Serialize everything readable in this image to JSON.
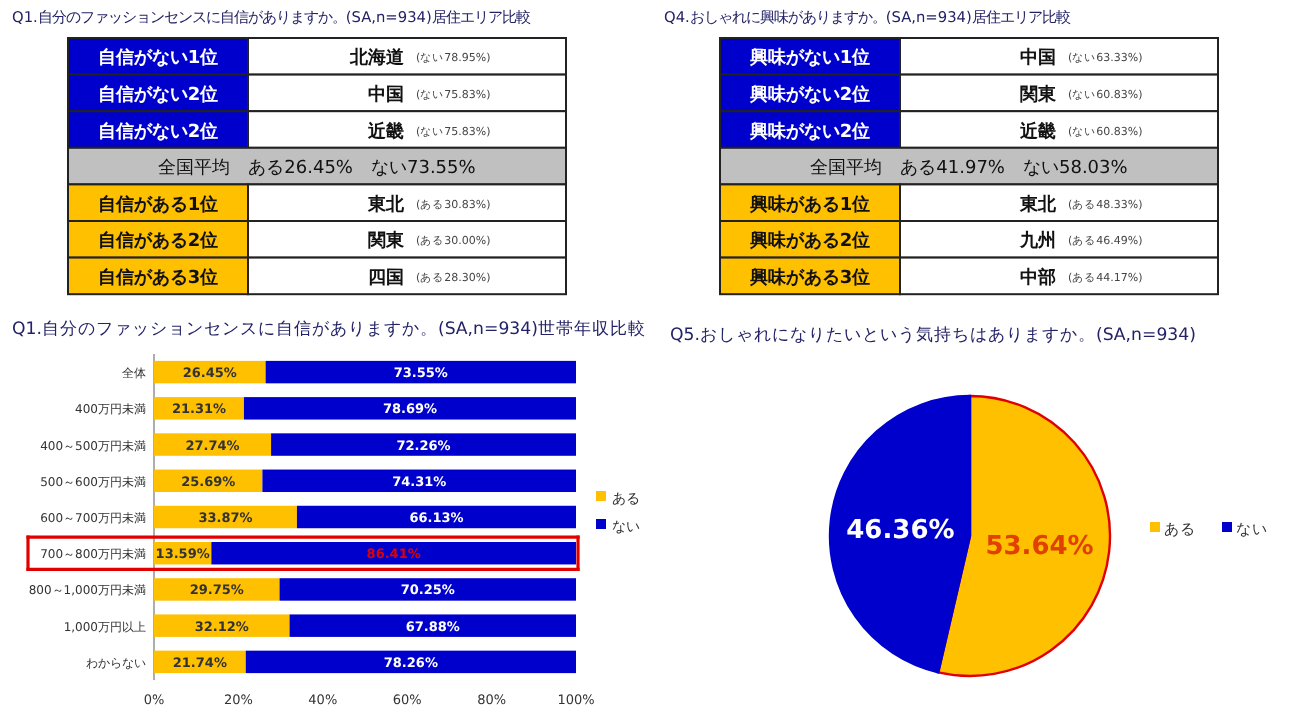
{
  "chart_data": [
    {
      "type": "other",
      "title": "Q1.自分のファッションセンスに自信がありますか。(SA,n=934)居住エリア比較",
      "annotations": [
        "自信がない1位",
        "北海道",
        "(ない78.95%)",
        "自信がない2位",
        "中国",
        "(ない75.83%)",
        "自信がない2位",
        "近畿",
        "(ない75.83%)",
        "全国平均　ある26.45%　ない73.55%",
        "自信がある1位",
        "東北",
        "(ある30.83%)",
        "自信がある2位",
        "関東",
        "(ある30.00%)",
        "自信がある3位",
        "四国",
        "(ある28.30%)"
      ]
    },
    {
      "type": "other",
      "title": "Q4.おしゃれに興味がありますか。(SA,n=934)居住エリア比較",
      "annotations": [
        "興味がない1位",
        "中国",
        "(ない63.33%)",
        "興味がない2位",
        "関東",
        "(ない60.83%)",
        "興味がない2位",
        "近畿",
        "(ない60.83%)",
        "全国平均　ある41.97%　ない58.03%",
        "興味がある1位",
        "東北",
        "(ある48.33%)",
        "興味がある2位",
        "九州",
        "(ある46.49%)",
        "興味がある3位",
        "中部",
        "(ある44.17%)"
      ]
    },
    {
      "type": "bar",
      "orientation": "horizontal",
      "stacked": true,
      "title": "Q1.自分のファッションセンスに自信がありますか。(SA,n=934)世帯年収比較",
      "categories": [
        "全体",
        "400万円未満",
        "400～500万円未満",
        "500～600万円未満",
        "600～700万円未満",
        "700～800万円未満",
        "800～1,000万円未満",
        "1,000万円以上",
        "わからない"
      ],
      "series": [
        {
          "name": "ある",
          "color": "#ffc000",
          "values": [
            26.45,
            21.31,
            27.74,
            25.69,
            33.87,
            13.59,
            29.75,
            32.12,
            21.74
          ],
          "value_labels": [
            "26.45%",
            "21.31%",
            "27.74%",
            "25.69%",
            "33.87%",
            "13.59%",
            "29.75%",
            "32.12%",
            "21.74%"
          ]
        },
        {
          "name": "ない",
          "color": "#0000cc",
          "values": [
            73.55,
            78.69,
            72.26,
            74.31,
            66.13,
            86.41,
            70.25,
            67.88,
            78.26
          ],
          "value_labels": [
            "73.55%",
            "78.69%",
            "72.26%",
            "74.31%",
            "66.13%",
            "86.41%",
            "70.25%",
            "67.88%",
            "78.26%"
          ]
        }
      ],
      "xlim": [
        0,
        100
      ],
      "xticks": [
        {
          "value": 0,
          "label": "0%"
        },
        {
          "value": 20,
          "label": "20%"
        },
        {
          "value": 40,
          "label": "40%"
        },
        {
          "value": 60,
          "label": "60%"
        },
        {
          "value": 80,
          "label": "80%"
        },
        {
          "value": 100,
          "label": "100%"
        }
      ],
      "legend": "right",
      "grid": false
    },
    {
      "type": "pie",
      "title": "Q5.おしゃれになりたいという気持ちはありますか。(SA,n=934)",
      "categories": [
        "ある",
        "ない"
      ],
      "values": [
        53.64,
        46.36
      ],
      "colors": [
        "#ffc000",
        "#0000cc"
      ],
      "value_labels": [
        "53.64%",
        "46.36%"
      ],
      "legend": "right"
    }
  ]
}
